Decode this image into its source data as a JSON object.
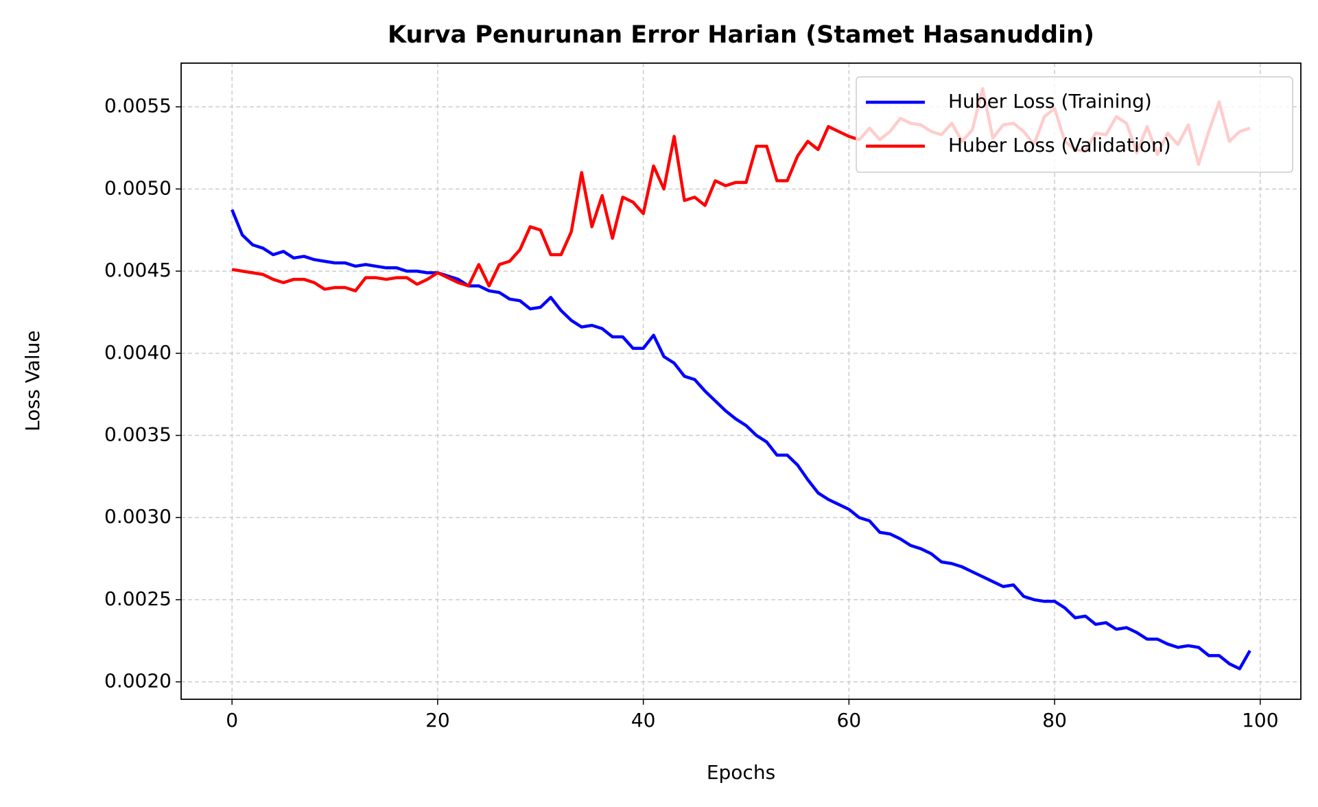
{
  "chart_data": {
    "type": "line",
    "title": "Kurva Penurunan Error Harian (Stamet Hasanuddin)",
    "xlabel": "Epochs",
    "ylabel": "Loss Value",
    "x": [
      0,
      1,
      2,
      3,
      4,
      5,
      6,
      7,
      8,
      9,
      10,
      11,
      12,
      13,
      14,
      15,
      16,
      17,
      18,
      19,
      20,
      21,
      22,
      23,
      24,
      25,
      26,
      27,
      28,
      29,
      30,
      31,
      32,
      33,
      34,
      35,
      36,
      37,
      38,
      39,
      40,
      41,
      42,
      43,
      44,
      45,
      46,
      47,
      48,
      49,
      50,
      51,
      52,
      53,
      54,
      55,
      56,
      57,
      58,
      59,
      60,
      61,
      62,
      63,
      64,
      65,
      66,
      67,
      68,
      69,
      70,
      71,
      72,
      73,
      74,
      75,
      76,
      77,
      78,
      79,
      80,
      81,
      82,
      83,
      84,
      85,
      86,
      87,
      88,
      89,
      90,
      91,
      92,
      93,
      94,
      95,
      96,
      97,
      98,
      99
    ],
    "series": [
      {
        "name": "Huber Loss (Training)",
        "color": "#0000ff",
        "values": [
          0.004874,
          0.00472,
          0.00466,
          0.00464,
          0.0046,
          0.00462,
          0.00458,
          0.00459,
          0.00457,
          0.00456,
          0.00455,
          0.00455,
          0.00453,
          0.00454,
          0.00453,
          0.00452,
          0.00452,
          0.0045,
          0.0045,
          0.00449,
          0.00449,
          0.00447,
          0.00445,
          0.00441,
          0.00441,
          0.00438,
          0.00437,
          0.00433,
          0.00432,
          0.00427,
          0.00428,
          0.00434,
          0.00426,
          0.0042,
          0.00416,
          0.00417,
          0.00415,
          0.0041,
          0.0041,
          0.00403,
          0.00403,
          0.00411,
          0.00398,
          0.00394,
          0.00386,
          0.00384,
          0.00377,
          0.00371,
          0.00365,
          0.0036,
          0.00356,
          0.0035,
          0.00346,
          0.00338,
          0.00338,
          0.00332,
          0.00323,
          0.00315,
          0.00311,
          0.00308,
          0.00305,
          0.003,
          0.00298,
          0.00291,
          0.0029,
          0.00287,
          0.00283,
          0.00281,
          0.00278,
          0.00273,
          0.00272,
          0.0027,
          0.00267,
          0.00264,
          0.00261,
          0.00258,
          0.00259,
          0.00252,
          0.0025,
          0.00249,
          0.00249,
          0.00245,
          0.00239,
          0.0024,
          0.00235,
          0.00236,
          0.00232,
          0.00233,
          0.0023,
          0.00226,
          0.00226,
          0.00223,
          0.00221,
          0.00222,
          0.00221,
          0.00216,
          0.00216,
          0.00211,
          0.00208,
          0.00219
        ]
      },
      {
        "name": "Huber Loss (Validation)",
        "color": "#ff0000",
        "values": [
          0.00451,
          0.0045,
          0.00449,
          0.00448,
          0.00445,
          0.00443,
          0.00445,
          0.00445,
          0.00443,
          0.00439,
          0.0044,
          0.0044,
          0.00438,
          0.00446,
          0.00446,
          0.00445,
          0.00446,
          0.00446,
          0.00442,
          0.00445,
          0.00449,
          0.00446,
          0.00443,
          0.00441,
          0.00454,
          0.00441,
          0.00454,
          0.00456,
          0.00463,
          0.00477,
          0.00475,
          0.0046,
          0.0046,
          0.00474,
          0.0051,
          0.00477,
          0.00496,
          0.0047,
          0.00495,
          0.00492,
          0.00485,
          0.00514,
          0.005,
          0.00532,
          0.00493,
          0.00495,
          0.0049,
          0.00505,
          0.00502,
          0.00504,
          0.00504,
          0.00526,
          0.00526,
          0.00505,
          0.00505,
          0.0052,
          0.00529,
          0.00524,
          0.00538,
          0.00535,
          0.00532,
          0.0053,
          0.00537,
          0.0053,
          0.00535,
          0.00543,
          0.0054,
          0.00539,
          0.00535,
          0.00533,
          0.0054,
          0.00529,
          0.00536,
          0.00561,
          0.00531,
          0.00539,
          0.0054,
          0.00535,
          0.00527,
          0.00544,
          0.00549,
          0.00529,
          0.00524,
          0.00523,
          0.00534,
          0.00533,
          0.00544,
          0.0054,
          0.00522,
          0.00538,
          0.00521,
          0.00534,
          0.00527,
          0.00539,
          0.00515,
          0.00535,
          0.00553,
          0.00529,
          0.00535,
          0.00537
        ]
      }
    ],
    "xlim": [
      -4.95,
      103.95
    ],
    "ylim": [
      0.001894,
      0.005766
    ],
    "xticks": [
      0,
      20,
      40,
      60,
      80,
      100
    ],
    "yticks": [
      {
        "value": 0.002,
        "label": "0.0020"
      },
      {
        "value": 0.0025,
        "label": "0.0025"
      },
      {
        "value": 0.003,
        "label": "0.0030"
      },
      {
        "value": 0.0035,
        "label": "0.0035"
      },
      {
        "value": 0.004,
        "label": "0.0040"
      },
      {
        "value": 0.0045,
        "label": "0.0045"
      },
      {
        "value": 0.005,
        "label": "0.0050"
      },
      {
        "value": 0.0055,
        "label": "0.0055"
      }
    ],
    "grid": true,
    "legend": "upper right"
  }
}
